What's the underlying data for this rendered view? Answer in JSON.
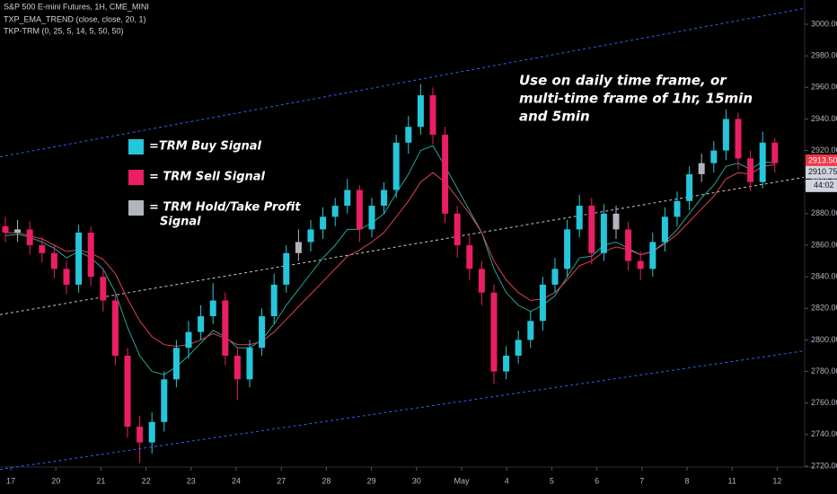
{
  "chart_data": {
    "type": "candlestick",
    "header": [
      "S&P 500 E-mini Futures, 1H, CME_MINI",
      "TXP_EMA_TREND (close, close, 20, 1)",
      "TKP-TRM (0, 25, 5, 14, 5, 50, 50)"
    ],
    "annotation": [
      "Use on daily time frame, or",
      "multi-time frame of 1hr, 15min",
      "and 5min"
    ],
    "legend": [
      {
        "label": [
          "=TRM Buy Signal"
        ],
        "color": "#26c6da"
      },
      {
        "label": [
          "= TRM Sell Signal"
        ],
        "color": "#e91e63"
      },
      {
        "label": [
          "= TRM Hold/Take Profit",
          "Signal"
        ],
        "color": "#b2b5be"
      }
    ],
    "categories": [
      "17",
      "20",
      "21",
      "22",
      "23",
      "24",
      "27",
      "28",
      "29",
      "30",
      "May",
      "4",
      "5",
      "6",
      "7",
      "8",
      "11",
      "12"
    ],
    "open": [
      2872,
      2868,
      2870,
      2860,
      2855,
      2845,
      2835,
      2868,
      2840,
      2825,
      2790,
      2745,
      2735,
      2748,
      2775,
      2795,
      2805,
      2815,
      2825,
      2790,
      2775,
      2795,
      2815,
      2835,
      2855,
      2862,
      2870,
      2878,
      2885,
      2895,
      2870,
      2885,
      2895,
      2925,
      2935,
      2955,
      2930,
      2880,
      2860,
      2845,
      2830,
      2780,
      2790,
      2800,
      2812,
      2835,
      2845,
      2870,
      2885,
      2855,
      2880,
      2870,
      2850,
      2845,
      2862,
      2878,
      2888,
      2905,
      2912,
      2920,
      2940,
      2915,
      2900,
      2925
    ],
    "high": [
      2878,
      2876,
      2875,
      2865,
      2860,
      2850,
      2873,
      2872,
      2845,
      2830,
      2795,
      2752,
      2754,
      2780,
      2800,
      2812,
      2822,
      2836,
      2830,
      2795,
      2800,
      2820,
      2842,
      2860,
      2870,
      2876,
      2884,
      2890,
      2902,
      2898,
      2890,
      2900,
      2930,
      2942,
      2962,
      2960,
      2935,
      2885,
      2866,
      2850,
      2835,
      2796,
      2806,
      2818,
      2840,
      2852,
      2876,
      2892,
      2890,
      2886,
      2885,
      2875,
      2856,
      2868,
      2884,
      2894,
      2910,
      2918,
      2926,
      2946,
      2944,
      2920,
      2932,
      2928
    ],
    "low": [
      2862,
      2862,
      2854,
      2849,
      2839,
      2829,
      2830,
      2834,
      2818,
      2784,
      2738,
      2722,
      2728,
      2742,
      2770,
      2788,
      2800,
      2810,
      2784,
      2762,
      2770,
      2790,
      2810,
      2830,
      2850,
      2856,
      2864,
      2872,
      2880,
      2862,
      2865,
      2880,
      2890,
      2918,
      2930,
      2924,
      2874,
      2852,
      2838,
      2822,
      2772,
      2775,
      2785,
      2795,
      2806,
      2830,
      2840,
      2865,
      2848,
      2850,
      2864,
      2844,
      2838,
      2840,
      2856,
      2872,
      2882,
      2900,
      2906,
      2914,
      2908,
      2894,
      2896,
      2906
    ],
    "close": [
      2868,
      2870,
      2860,
      2855,
      2845,
      2835,
      2868,
      2840,
      2825,
      2790,
      2745,
      2735,
      2748,
      2775,
      2795,
      2805,
      2815,
      2825,
      2790,
      2775,
      2795,
      2815,
      2835,
      2855,
      2862,
      2870,
      2878,
      2885,
      2895,
      2870,
      2885,
      2895,
      2925,
      2935,
      2955,
      2930,
      2880,
      2860,
      2845,
      2830,
      2780,
      2790,
      2800,
      2812,
      2835,
      2845,
      2870,
      2885,
      2855,
      2880,
      2870,
      2850,
      2845,
      2862,
      2878,
      2888,
      2905,
      2912,
      2920,
      2940,
      2915,
      2900,
      2925,
      2912
    ],
    "colors": [
      "#e91e63",
      "#b2b5be",
      "#e91e63",
      "#e91e63",
      "#e91e63",
      "#e91e63",
      "#26c6da",
      "#e91e63",
      "#e91e63",
      "#e91e63",
      "#e91e63",
      "#e91e63",
      "#26c6da",
      "#26c6da",
      "#26c6da",
      "#26c6da",
      "#26c6da",
      "#26c6da",
      "#e91e63",
      "#e91e63",
      "#26c6da",
      "#26c6da",
      "#26c6da",
      "#26c6da",
      "#b2b5be",
      "#26c6da",
      "#26c6da",
      "#26c6da",
      "#26c6da",
      "#e91e63",
      "#26c6da",
      "#26c6da",
      "#26c6da",
      "#26c6da",
      "#26c6da",
      "#e91e63",
      "#e91e63",
      "#e91e63",
      "#e91e63",
      "#e91e63",
      "#e91e63",
      "#26c6da",
      "#26c6da",
      "#26c6da",
      "#26c6da",
      "#26c6da",
      "#26c6da",
      "#26c6da",
      "#e91e63",
      "#26c6da",
      "#b2b5be",
      "#e91e63",
      "#e91e63",
      "#26c6da",
      "#26c6da",
      "#26c6da",
      "#26c6da",
      "#b2b5be",
      "#26c6da",
      "#26c6da",
      "#e91e63",
      "#e91e63",
      "#26c6da",
      "#e91e63"
    ],
    "lines": [
      {
        "color": "#26a69a",
        "values": [
          2866,
          2867,
          2865,
          2862,
          2858,
          2852,
          2856,
          2852,
          2845,
          2830,
          2808,
          2790,
          2780,
          2778,
          2783,
          2790,
          2798,
          2806,
          2802,
          2795,
          2795,
          2800,
          2810,
          2822,
          2832,
          2842,
          2852,
          2860,
          2870,
          2870,
          2874,
          2880,
          2893,
          2905,
          2920,
          2923,
          2910,
          2896,
          2882,
          2868,
          2845,
          2830,
          2822,
          2818,
          2822,
          2828,
          2840,
          2852,
          2853,
          2860,
          2862,
          2858,
          2854,
          2856,
          2862,
          2870,
          2880,
          2890,
          2898,
          2910,
          2912,
          2908,
          2913,
          2912
        ]
      },
      {
        "color": "#e0424f",
        "values": [
          2868,
          2868,
          2866,
          2864,
          2860,
          2856,
          2857,
          2855,
          2851,
          2842,
          2826,
          2812,
          2802,
          2797,
          2796,
          2797,
          2800,
          2804,
          2801,
          2797,
          2797,
          2799,
          2805,
          2813,
          2821,
          2829,
          2837,
          2845,
          2853,
          2857,
          2862,
          2868,
          2878,
          2888,
          2900,
          2906,
          2900,
          2890,
          2880,
          2868,
          2850,
          2838,
          2830,
          2825,
          2826,
          2830,
          2838,
          2847,
          2850,
          2856,
          2859,
          2857,
          2854,
          2856,
          2861,
          2867,
          2875,
          2883,
          2891,
          2902,
          2906,
          2905,
          2910,
          2911
        ]
      }
    ],
    "channels": [
      {
        "start": 2916,
        "end": 3010,
        "color": "#2962ff"
      },
      {
        "start": 2816,
        "end": 2903,
        "color": "#c8c8c8"
      },
      {
        "start": 2718,
        "end": 2793,
        "color": "#2962ff"
      }
    ],
    "ylim": [
      2720,
      3000
    ],
    "yticks": [
      {
        "value": 2720,
        "label": "2720.00"
      },
      {
        "value": 2740,
        "label": "2740.00"
      },
      {
        "value": 2760,
        "label": "2760.00"
      },
      {
        "value": 2780,
        "label": "2780.00"
      },
      {
        "value": 2800,
        "label": "2800.00"
      },
      {
        "value": 2820,
        "label": "2820.00"
      },
      {
        "value": 2840,
        "label": "2840.00"
      },
      {
        "value": 2860,
        "label": "2860.00"
      },
      {
        "value": 2880,
        "label": "2880.00"
      },
      {
        "value": 2900,
        "label": "2900.00"
      },
      {
        "value": 2920,
        "label": "2920.00"
      },
      {
        "value": 2940,
        "label": "2940.00"
      },
      {
        "value": 2960,
        "label": "2960.00"
      },
      {
        "value": 2980,
        "label": "2980.00"
      },
      {
        "value": 3000,
        "label": "3000.00"
      }
    ],
    "price_labels": [
      {
        "value": 2913.5,
        "label": "2913.50",
        "color": "#f23645"
      },
      {
        "value": 2910.75,
        "label": "2910.75",
        "color": "#d1d4dc"
      }
    ],
    "countdown": "44:02"
  }
}
